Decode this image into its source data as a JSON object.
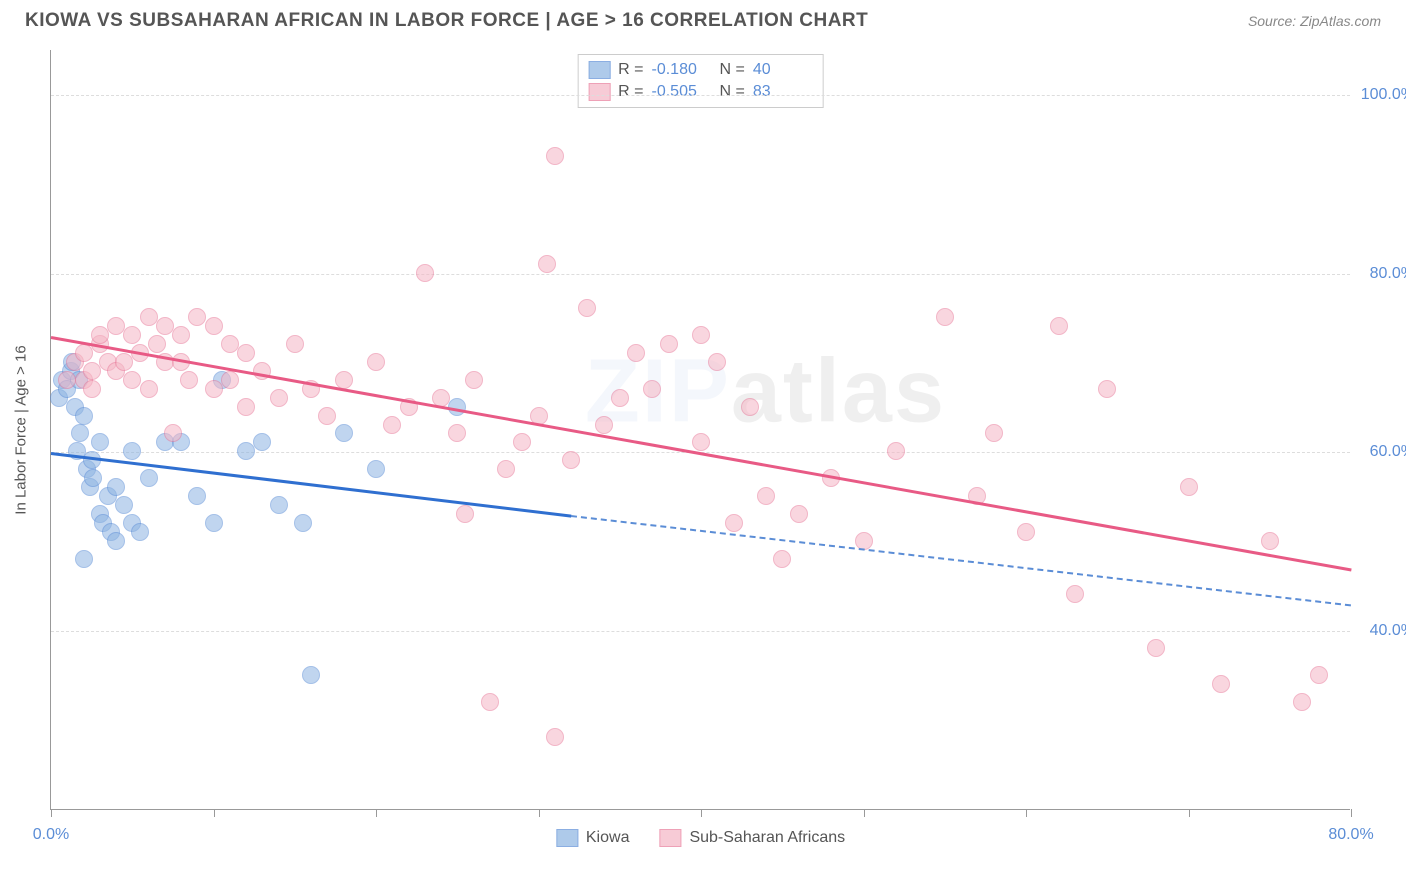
{
  "header": {
    "title": "KIOWA VS SUBSAHARAN AFRICAN IN LABOR FORCE | AGE > 16 CORRELATION CHART",
    "source": "Source: ZipAtlas.com"
  },
  "chart": {
    "type": "scatter",
    "ylabel": "In Labor Force | Age > 16",
    "xlim": [
      0,
      80
    ],
    "ylim": [
      20,
      105
    ],
    "yticks": [
      40,
      60,
      80,
      100
    ],
    "ytick_labels": [
      "40.0%",
      "60.0%",
      "80.0%",
      "100.0%"
    ],
    "xticks": [
      0,
      10,
      20,
      30,
      40,
      50,
      60,
      70,
      80
    ],
    "xtick_labels": {
      "0": "0.0%",
      "80": "80.0%"
    },
    "background_color": "#ffffff",
    "grid_color": "#dddddd",
    "axis_color": "#999999",
    "label_color": "#5b8dd6",
    "point_radius": 9,
    "point_opacity": 0.55,
    "series": [
      {
        "name": "Kiowa",
        "color_fill": "#8db4e2",
        "color_stroke": "#5b8dd6",
        "R": "-0.180",
        "N": "40",
        "trend": {
          "x1": 0,
          "y1": 60,
          "x2": 32,
          "y2": 53,
          "color": "#2f6fd0",
          "width": 3
        },
        "trend_dashed": {
          "x1": 32,
          "y1": 53,
          "x2": 80,
          "y2": 43,
          "color": "#5b8dd6"
        },
        "points": [
          [
            0.5,
            66
          ],
          [
            0.7,
            68
          ],
          [
            1,
            67
          ],
          [
            1.2,
            69
          ],
          [
            1.3,
            70
          ],
          [
            1.5,
            65
          ],
          [
            1.6,
            60
          ],
          [
            1.7,
            68
          ],
          [
            1.8,
            62
          ],
          [
            2,
            64
          ],
          [
            2,
            48
          ],
          [
            2.2,
            58
          ],
          [
            2.4,
            56
          ],
          [
            2.5,
            59
          ],
          [
            2.6,
            57
          ],
          [
            3,
            61
          ],
          [
            3,
            53
          ],
          [
            3.2,
            52
          ],
          [
            3.5,
            55
          ],
          [
            3.7,
            51
          ],
          [
            4,
            56
          ],
          [
            4,
            50
          ],
          [
            4.5,
            54
          ],
          [
            5,
            52
          ],
          [
            5,
            60
          ],
          [
            5.5,
            51
          ],
          [
            6,
            57
          ],
          [
            7,
            61
          ],
          [
            8,
            61
          ],
          [
            9,
            55
          ],
          [
            10,
            52
          ],
          [
            10.5,
            68
          ],
          [
            12,
            60
          ],
          [
            13,
            61
          ],
          [
            14,
            54
          ],
          [
            15.5,
            52
          ],
          [
            16,
            35
          ],
          [
            18,
            62
          ],
          [
            20,
            58
          ],
          [
            25,
            65
          ]
        ]
      },
      {
        "name": "Sub-Saharan Africans",
        "color_fill": "#f5b6c5",
        "color_stroke": "#e87a9a",
        "R": "-0.505",
        "N": "83",
        "trend": {
          "x1": 0,
          "y1": 73,
          "x2": 80,
          "y2": 47,
          "color": "#e85a85",
          "width": 3
        },
        "points": [
          [
            1,
            68
          ],
          [
            1.5,
            70
          ],
          [
            2,
            71
          ],
          [
            2,
            68
          ],
          [
            2.5,
            69
          ],
          [
            2.5,
            67
          ],
          [
            3,
            72
          ],
          [
            3,
            73
          ],
          [
            3.5,
            70
          ],
          [
            4,
            69
          ],
          [
            4,
            74
          ],
          [
            4.5,
            70
          ],
          [
            5,
            73
          ],
          [
            5,
            68
          ],
          [
            5.5,
            71
          ],
          [
            6,
            75
          ],
          [
            6,
            67
          ],
          [
            6.5,
            72
          ],
          [
            7,
            70
          ],
          [
            7,
            74
          ],
          [
            7.5,
            62
          ],
          [
            8,
            73
          ],
          [
            8,
            70
          ],
          [
            8.5,
            68
          ],
          [
            9,
            75
          ],
          [
            10,
            74
          ],
          [
            10,
            67
          ],
          [
            11,
            72
          ],
          [
            11,
            68
          ],
          [
            12,
            71
          ],
          [
            12,
            65
          ],
          [
            13,
            69
          ],
          [
            14,
            66
          ],
          [
            15,
            72
          ],
          [
            16,
            67
          ],
          [
            17,
            64
          ],
          [
            18,
            68
          ],
          [
            20,
            70
          ],
          [
            21,
            63
          ],
          [
            22,
            65
          ],
          [
            23,
            80
          ],
          [
            24,
            66
          ],
          [
            25,
            62
          ],
          [
            25.5,
            53
          ],
          [
            26,
            68
          ],
          [
            27,
            32
          ],
          [
            28,
            58
          ],
          [
            29,
            61
          ],
          [
            30,
            64
          ],
          [
            30.5,
            81
          ],
          [
            31,
            28
          ],
          [
            31,
            93
          ],
          [
            32,
            59
          ],
          [
            33,
            76
          ],
          [
            34,
            63
          ],
          [
            35,
            66
          ],
          [
            36,
            71
          ],
          [
            37,
            67
          ],
          [
            38,
            72
          ],
          [
            40,
            61
          ],
          [
            40,
            73
          ],
          [
            41,
            70
          ],
          [
            42,
            52
          ],
          [
            43,
            65
          ],
          [
            44,
            55
          ],
          [
            45,
            48
          ],
          [
            46,
            53
          ],
          [
            48,
            57
          ],
          [
            50,
            50
          ],
          [
            52,
            60
          ],
          [
            55,
            75
          ],
          [
            57,
            55
          ],
          [
            58,
            62
          ],
          [
            60,
            51
          ],
          [
            62,
            74
          ],
          [
            63,
            44
          ],
          [
            65,
            67
          ],
          [
            68,
            38
          ],
          [
            70,
            56
          ],
          [
            72,
            34
          ],
          [
            75,
            50
          ],
          [
            77,
            32
          ],
          [
            78,
            35
          ]
        ]
      }
    ],
    "watermark": {
      "part1": "ZIP",
      "part2": "atlas"
    },
    "bottom_legend": [
      "Kiowa",
      "Sub-Saharan Africans"
    ]
  }
}
